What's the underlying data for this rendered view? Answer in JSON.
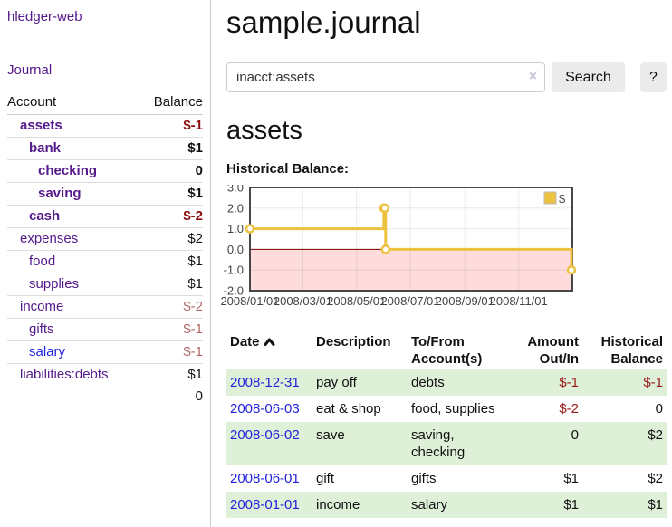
{
  "colors": {
    "link_purple": "#551a8b",
    "link_blue": "#2222dd",
    "negative_dark_red": "#8b1111",
    "negative_light_red": "#b06868",
    "negative_red": "#9c1a1a",
    "row_green": "#dff0d8",
    "series_gold": "#EDC240"
  },
  "sidebar": {
    "brand": "hledger-web",
    "nav": {
      "journal": "Journal"
    },
    "table": {
      "headers": {
        "account": "Account",
        "balance": "Balance"
      },
      "rows": [
        {
          "account": "assets",
          "balance": "$-1",
          "indent": 1,
          "bold": true,
          "link_style": "visited"
        },
        {
          "account": "bank",
          "balance": "$1",
          "indent": 2,
          "bold": true,
          "link_style": "visited"
        },
        {
          "account": "checking",
          "balance": "0",
          "indent": 3,
          "bold": true,
          "link_style": "visited"
        },
        {
          "account": "saving",
          "balance": "$1",
          "indent": 3,
          "bold": true,
          "link_style": "visited"
        },
        {
          "account": "cash",
          "balance": "$-2",
          "indent": 2,
          "bold": true,
          "link_style": "visited"
        },
        {
          "account": "expenses",
          "balance": "$2",
          "indent": 1,
          "bold": false,
          "link_style": "visited"
        },
        {
          "account": "food",
          "balance": "$1",
          "indent": 2,
          "bold": false,
          "link_style": "visited"
        },
        {
          "account": "supplies",
          "balance": "$1",
          "indent": 2,
          "bold": false,
          "link_style": "visited"
        },
        {
          "account": "income",
          "balance": "$-2",
          "indent": 1,
          "bold": false,
          "link_style": "visited"
        },
        {
          "account": "gifts",
          "balance": "$-1",
          "indent": 2,
          "bold": false,
          "link_style": "visited"
        },
        {
          "account": "salary",
          "balance": "$-1",
          "indent": 2,
          "bold": false,
          "link_style": "unvisited"
        },
        {
          "account": "liabilities:debts",
          "balance": "$1",
          "indent": 1,
          "bold": false,
          "link_style": "visited"
        }
      ],
      "total": "0"
    }
  },
  "main": {
    "title": "sample.journal",
    "search": {
      "value": "inacct:assets",
      "clear_icon": "×",
      "search_button": "Search",
      "help_button": "?"
    },
    "account_heading": "assets",
    "chart_title": "Historical Balance:"
  },
  "chart_data": {
    "type": "line",
    "title": "Historical Balance",
    "style": "step",
    "grid": true,
    "legend": {
      "position": "top-right",
      "entries": [
        "$"
      ]
    },
    "x_range": [
      "2008-01-01",
      "2009-01-01"
    ],
    "ylim": [
      -2,
      3
    ],
    "y_ticks": [
      3.0,
      2.0,
      1.0,
      0.0,
      -1.0,
      -2.0
    ],
    "x_ticks": [
      "2008/01/01",
      "2008/03/01",
      "2008/05/01",
      "2008/07/01",
      "2008/09/01",
      "2008/11/01"
    ],
    "series": [
      {
        "name": "$",
        "color": "#EDC240",
        "points": [
          [
            "2008-01-01",
            1
          ],
          [
            "2008-06-01",
            2
          ],
          [
            "2008-06-02",
            2
          ],
          [
            "2008-06-03",
            0
          ],
          [
            "2008-12-31",
            -1
          ]
        ]
      }
    ],
    "negative_region_color": "#ffdcdc",
    "zero_line_color": "#800000"
  },
  "register": {
    "columns": [
      {
        "label": "Date",
        "sorted": "asc"
      },
      {
        "label": "Description"
      },
      {
        "label": "To/From Account(s)"
      },
      {
        "label": "Amount Out/In",
        "align": "right"
      },
      {
        "label": "Historical Balance",
        "align": "right"
      }
    ],
    "rows": [
      {
        "date": "2008-12-31",
        "description": "pay off",
        "accounts": "debts",
        "amount": "$-1",
        "balance": "$-1"
      },
      {
        "date": "2008-06-03",
        "description": "eat & shop",
        "accounts": "food, supplies",
        "amount": "$-2",
        "balance": "0"
      },
      {
        "date": "2008-06-02",
        "description": "save",
        "accounts": "saving, checking",
        "amount": "0",
        "balance": "$2"
      },
      {
        "date": "2008-06-01",
        "description": "gift",
        "accounts": "gifts",
        "amount": "$1",
        "balance": "$2"
      },
      {
        "date": "2008-01-01",
        "description": "income",
        "accounts": "salary",
        "amount": "$1",
        "balance": "$1"
      }
    ]
  }
}
